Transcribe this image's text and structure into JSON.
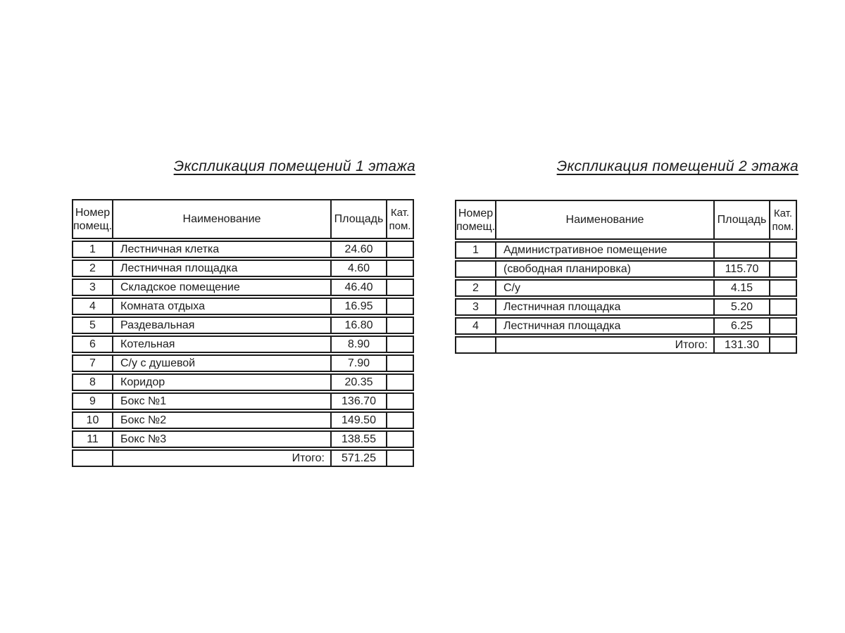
{
  "page": {
    "background_color": "#ffffff",
    "text_color": "#1c1c1c",
    "border_color": "#1c1c1c"
  },
  "tables": [
    {
      "title": "Экспликация помещений 1 этажа",
      "headers": {
        "number_line1": "Номер",
        "number_line2": "помещ.",
        "name": "Наименование",
        "area": "Площадь",
        "category_line1": "Кат.",
        "category_line2": "пом."
      },
      "rows": [
        {
          "num": "1",
          "name": "Лестничная клетка",
          "area": "24.60",
          "cat": ""
        },
        {
          "num": "2",
          "name": "Лестничная площадка",
          "area": "4.60",
          "cat": ""
        },
        {
          "num": "3",
          "name": "Складское помещение",
          "area": "46.40",
          "cat": ""
        },
        {
          "num": "4",
          "name": "Комната отдыха",
          "area": "16.95",
          "cat": ""
        },
        {
          "num": "5",
          "name": "Раздевальная",
          "area": "16.80",
          "cat": ""
        },
        {
          "num": "6",
          "name": "Котельная",
          "area": "8.90",
          "cat": ""
        },
        {
          "num": "7",
          "name": "С/у с душевой",
          "area": "7.90",
          "cat": ""
        },
        {
          "num": "8",
          "name": "Коридор",
          "area": "20.35",
          "cat": ""
        },
        {
          "num": "9",
          "name": "Бокс №1",
          "area": "136.70",
          "cat": ""
        },
        {
          "num": "10",
          "name": "Бокс №2",
          "area": "149.50",
          "cat": ""
        },
        {
          "num": "11",
          "name": "Бокс №3",
          "area": "138.55",
          "cat": ""
        }
      ],
      "total_label": "Итого:",
      "total_value": "571.25"
    },
    {
      "title": "Экспликация помещений 2 этажа",
      "headers": {
        "number_line1": "Номер",
        "number_line2": "помещ.",
        "name": "Наименование",
        "area": "Площадь",
        "category_line1": "Кат.",
        "category_line2": "пом."
      },
      "rows": [
        {
          "num": "1",
          "name": "Административное помещение",
          "area": "",
          "cat": ""
        },
        {
          "num": "",
          "name": "(свободная планировка)",
          "area": "115.70",
          "cat": ""
        },
        {
          "num": "2",
          "name": "С/у",
          "area": "4.15",
          "cat": ""
        },
        {
          "num": "3",
          "name": "Лестничная площадка",
          "area": "5.20",
          "cat": ""
        },
        {
          "num": "4",
          "name": "Лестничная площадка",
          "area": "6.25",
          "cat": ""
        }
      ],
      "total_label": "Итого:",
      "total_value": "131.30"
    }
  ]
}
